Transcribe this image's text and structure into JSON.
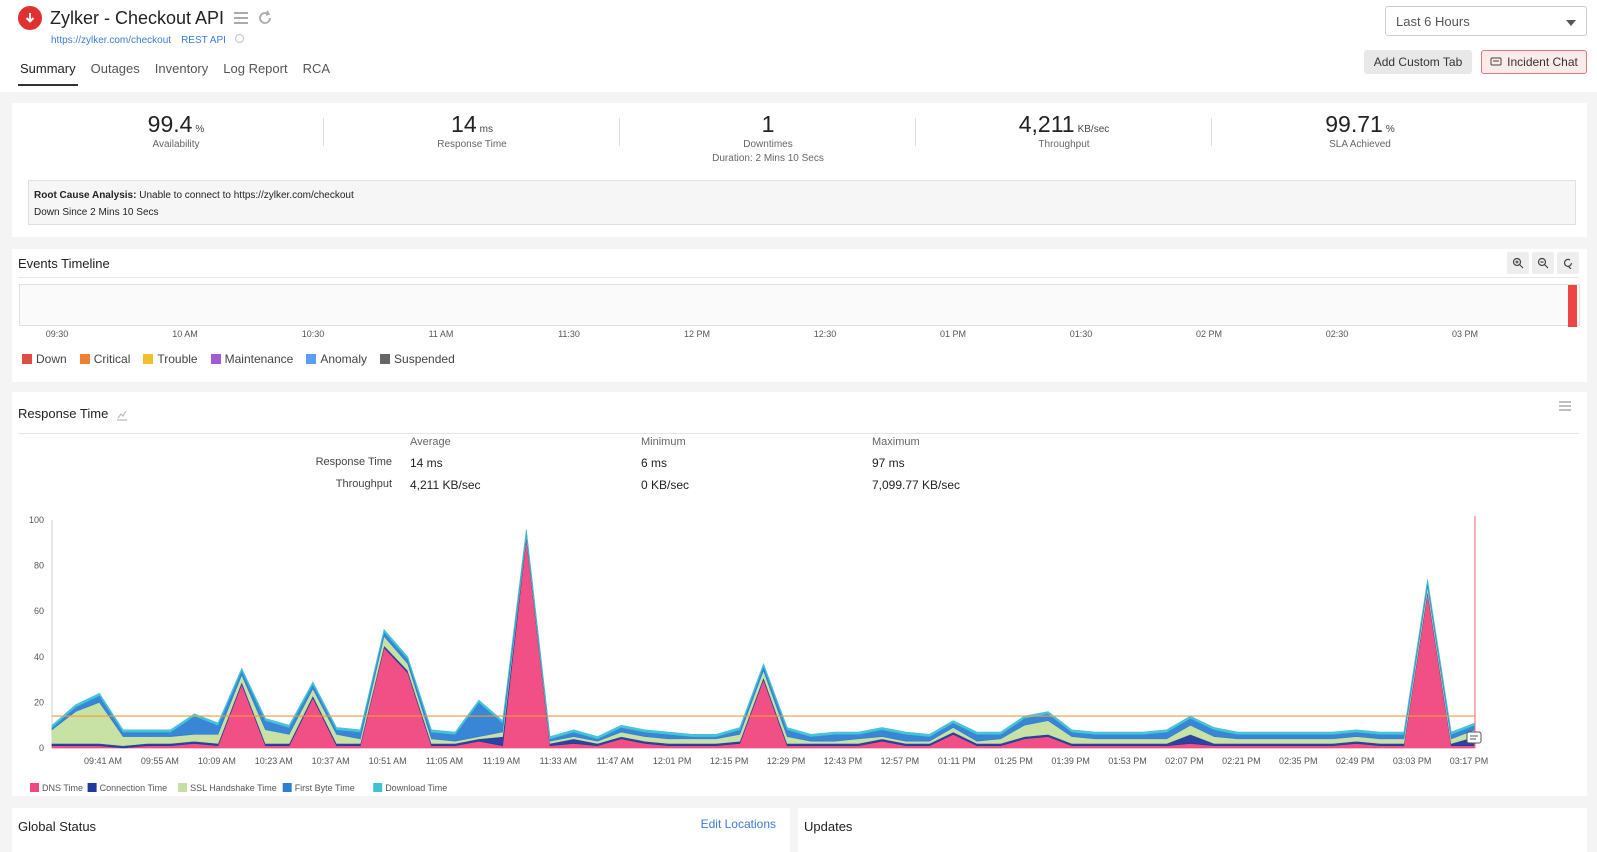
{
  "header": {
    "title": "Zylker - Checkout API",
    "url": "https://zylker.com/checkout",
    "type": "REST API",
    "tabs": [
      "Summary",
      "Outages",
      "Inventory",
      "Log Report",
      "RCA"
    ],
    "time_range": "Last 6 Hours",
    "add_tab_label": "Add Custom Tab",
    "incident_chat_label": "Incident Chat"
  },
  "summary": {
    "availability": {
      "value": "99.4",
      "unit": "%",
      "label": "Availability"
    },
    "response_time": {
      "value": "14",
      "unit": "ms",
      "label": "Response Time"
    },
    "downtimes": {
      "value": "1",
      "label": "Downtimes",
      "duration": "Duration: 2 Mins 10 Secs"
    },
    "throughput": {
      "value": "4,211",
      "unit": "KB/sec",
      "label": "Throughput"
    },
    "sla": {
      "value": "99.71",
      "unit": "%",
      "label": "SLA Achieved"
    },
    "rca_label": "Root Cause Analysis:",
    "rca_text": "Unable to connect to https://zylker.com/checkout",
    "down_since": "Down Since 2 Mins 10 Secs"
  },
  "events": {
    "title": "Events Timeline",
    "ticks": [
      "09:30",
      "10 AM",
      "10:30",
      "11 AM",
      "11:30",
      "12 PM",
      "12:30",
      "01 PM",
      "01:30",
      "02 PM",
      "02:30",
      "03 PM"
    ],
    "legend": [
      {
        "label": "Down",
        "color": "#e24d42"
      },
      {
        "label": "Critical",
        "color": "#f08030"
      },
      {
        "label": "Trouble",
        "color": "#f3c02d"
      },
      {
        "label": "Maintenance",
        "color": "#a25bd6"
      },
      {
        "label": "Anomaly",
        "color": "#5c9ef2"
      },
      {
        "label": "Suspended",
        "color": "#666666"
      }
    ]
  },
  "response": {
    "title": "Response Time",
    "col_headers": [
      "Average",
      "Minimum",
      "Maximum"
    ],
    "rows": [
      {
        "label": "Response Time",
        "values": [
          "14 ms",
          "6 ms",
          "97 ms"
        ]
      },
      {
        "label": "Throughput",
        "values": [
          "4,211 KB/sec",
          "0 KB/sec",
          "7,099.77 KB/sec"
        ]
      }
    ]
  },
  "chart_data": {
    "type": "area",
    "ylim": [
      0,
      100
    ],
    "yticks": [
      0,
      20,
      40,
      60,
      80,
      100
    ],
    "threshold": 14,
    "xticks": [
      "09:41 AM",
      "09:55 AM",
      "10:09 AM",
      "10:23 AM",
      "10:37 AM",
      "10:51 AM",
      "11:05 AM",
      "11:19 AM",
      "11:33 AM",
      "11:47 AM",
      "12:01 PM",
      "12:15 PM",
      "12:29 PM",
      "12:43 PM",
      "12:57 PM",
      "01:11 PM",
      "01:25 PM",
      "01:39 PM",
      "01:53 PM",
      "02:07 PM",
      "02:21 PM",
      "02:35 PM",
      "02:49 PM",
      "03:03 PM",
      "03:17 PM"
    ],
    "series": [
      {
        "name": "DNS Time",
        "color": "#f0477f",
        "values": [
          1,
          1,
          1,
          0,
          1,
          1,
          2,
          1,
          28,
          1,
          1,
          22,
          1,
          1,
          44,
          33,
          1,
          1,
          3,
          1,
          92,
          1,
          2,
          1,
          4,
          2,
          1,
          1,
          1,
          2,
          30,
          1,
          1,
          1,
          1,
          3,
          1,
          1,
          6,
          1,
          1,
          4,
          5,
          1,
          1,
          1,
          1,
          1,
          2,
          1,
          1,
          1,
          1,
          1,
          1,
          2,
          1,
          1,
          68,
          1,
          1
        ]
      },
      {
        "name": "Connection Time",
        "color": "#1f3a9a",
        "values": [
          1,
          1,
          1,
          1,
          1,
          1,
          1,
          1,
          1,
          1,
          1,
          1,
          1,
          1,
          1,
          1,
          1,
          1,
          1,
          4,
          1,
          1,
          2,
          1,
          1,
          1,
          1,
          1,
          1,
          1,
          1,
          1,
          1,
          1,
          1,
          1,
          1,
          1,
          1,
          1,
          1,
          1,
          1,
          1,
          1,
          1,
          1,
          1,
          4,
          1,
          1,
          1,
          1,
          1,
          1,
          1,
          1,
          1,
          1,
          1,
          4
        ]
      },
      {
        "name": "SSL Handshake Time",
        "color": "#c5dfa0",
        "values": [
          6,
          14,
          18,
          4,
          3,
          3,
          3,
          4,
          3,
          6,
          4,
          3,
          4,
          2,
          4,
          3,
          2,
          1,
          1,
          2,
          1,
          1,
          1,
          1,
          2,
          2,
          2,
          2,
          2,
          3,
          3,
          3,
          1,
          1,
          2,
          1,
          1,
          1,
          2,
          1,
          2,
          5,
          6,
          3,
          2,
          2,
          2,
          2,
          4,
          3,
          2,
          2,
          2,
          2,
          2,
          2,
          2,
          2,
          2,
          2,
          3
        ]
      },
      {
        "name": "First Byte Time",
        "color": "#2d7fd3",
        "values": [
          1,
          2,
          3,
          2,
          2,
          2,
          8,
          4,
          2,
          4,
          3,
          2,
          2,
          3,
          2,
          2,
          3,
          3,
          15,
          4,
          1,
          1,
          2,
          1,
          2,
          2,
          2,
          1,
          1,
          2,
          2,
          3,
          2,
          3,
          2,
          3,
          3,
          2,
          2,
          3,
          2,
          3,
          3,
          2,
          2,
          2,
          2,
          3,
          3,
          3,
          2,
          2,
          2,
          2,
          2,
          2,
          2,
          2,
          2,
          2,
          2
        ]
      },
      {
        "name": "Download Time",
        "color": "#3fc1d6",
        "values": [
          1,
          1,
          1,
          1,
          1,
          1,
          1,
          1,
          1,
          1,
          1,
          1,
          1,
          1,
          1,
          1,
          1,
          1,
          1,
          1,
          1,
          1,
          1,
          1,
          1,
          1,
          1,
          1,
          1,
          1,
          1,
          1,
          1,
          1,
          1,
          1,
          1,
          1,
          1,
          1,
          1,
          1,
          1,
          1,
          1,
          1,
          1,
          1,
          1,
          1,
          1,
          1,
          1,
          1,
          1,
          1,
          1,
          1,
          1,
          1,
          1
        ]
      }
    ]
  },
  "global_status": {
    "title": "Global Status",
    "edit_label": "Edit Locations"
  },
  "updates": {
    "title": "Updates"
  }
}
